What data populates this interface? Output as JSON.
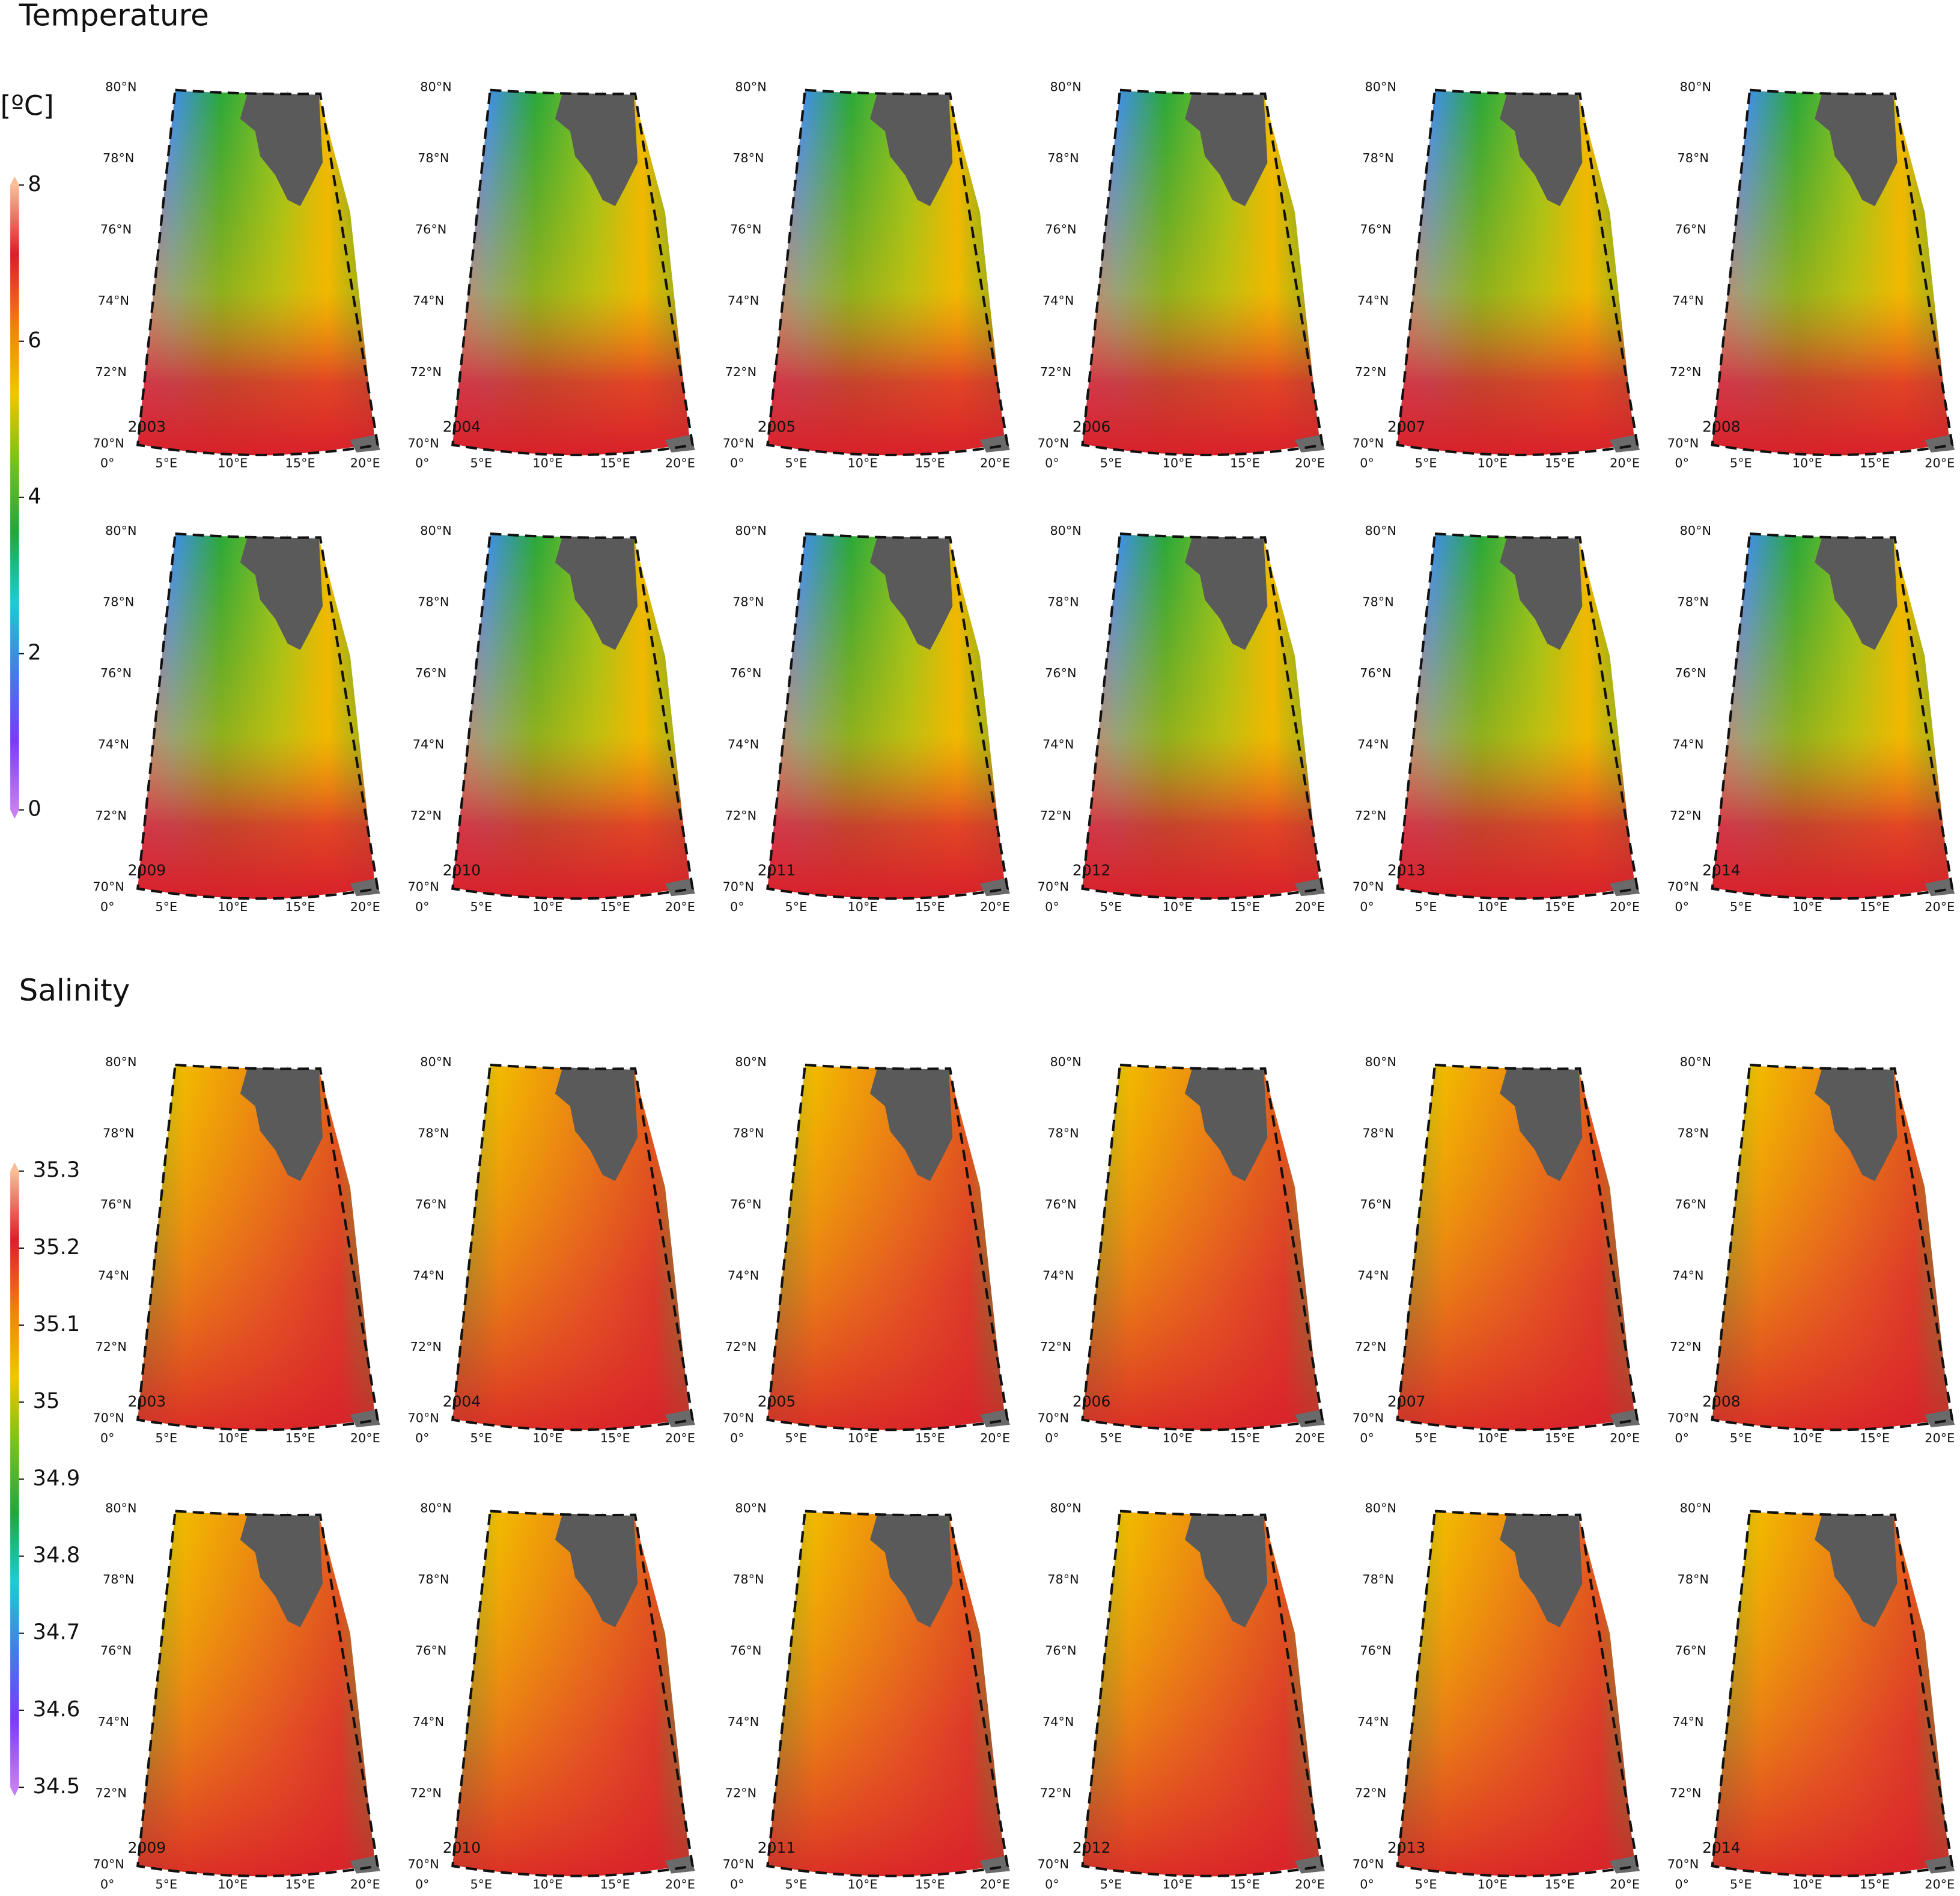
{
  "sections": [
    {
      "title": "Temperature",
      "unit": "[ºC]",
      "colorbar": {
        "lim": [
          0,
          8
        ],
        "ticks": [
          0,
          2,
          4,
          6,
          8
        ],
        "colors": [
          "#c77df5",
          "#7b3cf0",
          "#3f7fe8",
          "#21c9d6",
          "#1fa83a",
          "#74c21e",
          "#f5c400",
          "#f07e10",
          "#d9202a",
          "#fbbd98"
        ]
      },
      "years": [
        2003,
        2004,
        2005,
        2006,
        2007,
        2008,
        2009,
        2010,
        2011,
        2012,
        2013,
        2014
      ]
    },
    {
      "title": "Salinity",
      "colorbar": {
        "lim": [
          34.5,
          35.3
        ],
        "ticks": [
          34.5,
          34.6,
          34.7,
          34.8,
          34.9,
          35,
          35.1,
          35.2,
          35.3
        ],
        "colors": [
          "#c77df5",
          "#7b3cf0",
          "#3f7fe8",
          "#21c9d6",
          "#1fa83a",
          "#74c21e",
          "#f5c400",
          "#f07e10",
          "#d9202a",
          "#fbbd98"
        ]
      },
      "years": [
        2003,
        2004,
        2005,
        2006,
        2007,
        2008,
        2009,
        2010,
        2011,
        2012,
        2013,
        2014
      ]
    }
  ],
  "lat_labels": [
    "70°N",
    "72°N",
    "74°N",
    "76°N",
    "78°N",
    "80°N"
  ],
  "lon_labels": [
    "0°",
    "5°E",
    "10°E",
    "15°E",
    "20°E"
  ]
}
